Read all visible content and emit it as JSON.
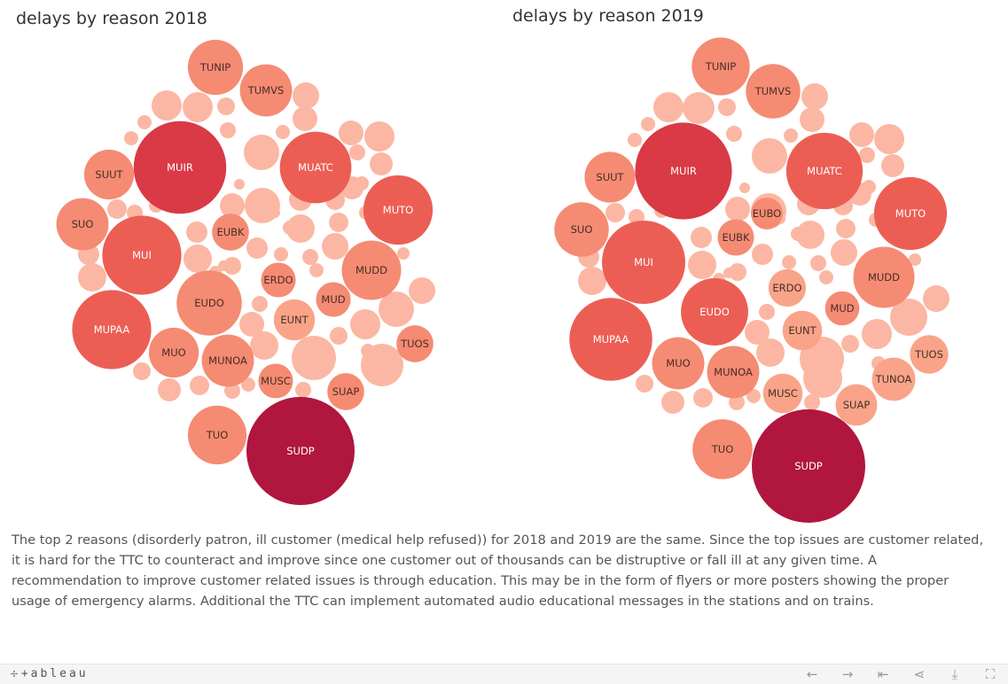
{
  "chart_data": [
    {
      "type": "bubble",
      "title": "delays by reason 2018",
      "bubbles": [
        {
          "label": "SUDP",
          "value": 14600
        },
        {
          "label": "MUIR",
          "value": 10700
        },
        {
          "label": "MUPAA",
          "value": 7800
        },
        {
          "label": "MUI",
          "value": 7800
        },
        {
          "label": "MUTO",
          "value": 6000
        },
        {
          "label": "MUATC",
          "value": 6400
        },
        {
          "label": "MUDD",
          "value": 4400
        },
        {
          "label": "EUDO",
          "value": 5300
        },
        {
          "label": "SUO",
          "value": 3400
        },
        {
          "label": "SUUT",
          "value": 3100
        },
        {
          "label": "TUNIP",
          "value": 3800
        },
        {
          "label": "TUMVS",
          "value": 3400
        },
        {
          "label": "TUO",
          "value": 4300
        },
        {
          "label": "MUNOA",
          "value": 3400
        },
        {
          "label": "MUO",
          "value": 3100
        },
        {
          "label": "TUOS",
          "value": 1700
        },
        {
          "label": "SUAP",
          "value": 1700
        },
        {
          "label": "MUSC",
          "value": 1500
        },
        {
          "label": "EUNT",
          "value": 2100
        },
        {
          "label": "MUD",
          "value": 1500
        },
        {
          "label": "ERDO",
          "value": 1500
        },
        {
          "label": "EUBK",
          "value": 1700
        }
      ]
    },
    {
      "type": "bubble",
      "title": "delays by reason 2019",
      "bubbles": [
        {
          "label": "SUDP",
          "value": 16500
        },
        {
          "label": "MUIR",
          "value": 12000
        },
        {
          "label": "MUPAA",
          "value": 8800
        },
        {
          "label": "MUI",
          "value": 8900
        },
        {
          "label": "MUTO",
          "value": 6800
        },
        {
          "label": "MUATC",
          "value": 7500
        },
        {
          "label": "MUDD",
          "value": 4800
        },
        {
          "label": "EUDO",
          "value": 5800
        },
        {
          "label": "SUO",
          "value": 3800
        },
        {
          "label": "SUUT",
          "value": 3300
        },
        {
          "label": "TUNIP",
          "value": 4300
        },
        {
          "label": "TUMVS",
          "value": 3800
        },
        {
          "label": "TUO",
          "value": 4600
        },
        {
          "label": "MUNOA",
          "value": 3500
        },
        {
          "label": "MUO",
          "value": 3500
        },
        {
          "label": "TUOS",
          "value": 1900
        },
        {
          "label": "TUNOA",
          "value": 2400
        },
        {
          "label": "SUAP",
          "value": 2200
        },
        {
          "label": "MUSC",
          "value": 2000
        },
        {
          "label": "EUNT",
          "value": 2000
        },
        {
          "label": "MUD",
          "value": 1500
        },
        {
          "label": "ERDO",
          "value": 1800
        },
        {
          "label": "EUBK",
          "value": 1700
        },
        {
          "label": "EUBO",
          "value": 1300
        }
      ]
    }
  ],
  "colors": {
    "darkest": "#b0163e",
    "dark": "#d93a45",
    "medium": "#ec5e54",
    "light": "#f58b73",
    "lighter": "#f9a489",
    "lightest": "#fbb7a3"
  },
  "commentary": "The top 2 reasons (disorderly patron, ill customer (medical help refused)) for 2018 and 2019 are the same. Since the top issues are customer related, it is hard for the TTC to counteract and improve since one customer out of thousands can be distruptive or fall ill at any given time. A recommendation to improve customer related issues is through education. This may be in the form of flyers or more posters showing the proper usage of emergency alarms. Additional the TTC can implement automated audio educational messages in the stations and on trains.",
  "toolbar": {
    "logo": "+ a b l e a u",
    "icons": [
      "undo-icon",
      "redo-icon",
      "revert-icon",
      "share-icon",
      "download-icon",
      "fullscreen-icon"
    ]
  }
}
